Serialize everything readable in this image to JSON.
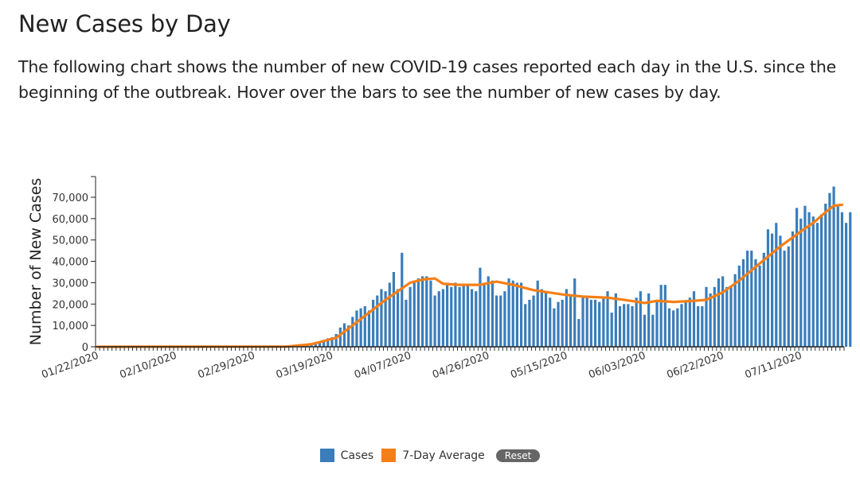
{
  "page": {
    "title": "New Cases by Day",
    "description": "The following chart shows the number of new COVID-19 cases reported each day in the U.S. since the beginning of the outbreak. Hover over the bars to see the number of new cases by day."
  },
  "legend": {
    "cases_label": "Cases",
    "avg_label": "7-Day Average",
    "reset_label": "Reset"
  },
  "colors": {
    "bar": "#3a7dba",
    "line": "#f57f17"
  },
  "chart_data": {
    "type": "bar",
    "ylabel": "Number of New Cases",
    "ylim": [
      0,
      80000
    ],
    "yticks": [
      0,
      10000,
      20000,
      30000,
      40000,
      50000,
      60000,
      70000
    ],
    "ytick_labels": [
      "0",
      "10,000",
      "20,000",
      "30,000",
      "40,000",
      "50,000",
      "60,000",
      "70,000"
    ],
    "x_start": "2020-01-22",
    "x_end": "2020-07-21",
    "xtick_labels": [
      "01/22/2020",
      "02/10/2020",
      "02/29/2020",
      "03/19/2020",
      "04/07/2020",
      "04/26/2020",
      "05/15/2020",
      "06/03/2020",
      "06/22/2020",
      "07/11/2020"
    ],
    "series": [
      {
        "name": "Cases",
        "type": "bar",
        "segments": [
          {
            "start": "2020-01-22",
            "values": [
              0,
              0,
              0,
              0,
              0,
              0,
              0,
              0,
              0,
              0,
              0,
              0,
              0,
              0,
              0,
              0,
              0,
              0,
              0,
              0,
              0,
              0,
              0,
              0,
              0,
              0,
              0,
              0,
              0,
              0,
              0,
              0,
              0,
              0,
              0,
              0,
              0,
              0,
              0,
              0,
              0,
              0,
              0,
              0,
              0,
              0
            ]
          },
          {
            "start": "2020-03-08",
            "values": [
              100,
              150,
              200,
              300,
              400,
              600,
              800,
              1200,
              1800,
              2800,
              4000,
              4500,
              6000,
              9000,
              11000,
              10000,
              14000,
              17000,
              18000,
              19000,
              17000,
              22000,
              24000,
              27000,
              26000,
              30000,
              35000,
              27000,
              44000,
              22000,
              28000,
              31000,
              32000,
              33000,
              33000,
              31000,
              24000,
              26000,
              27000,
              29000,
              28000,
              30000,
              28000,
              29000,
              29000,
              27000,
              26000,
              37000,
              30000,
              33000,
              31000,
              24000,
              24000,
              26000,
              32000,
              31000,
              30000,
              30000,
              20000,
              22000,
              24000,
              31000,
              27000,
              26000,
              23000,
              18000,
              21000,
              22000,
              27000,
              24000,
              32000,
              13000,
              24000,
              23000,
              22000,
              22000,
              21000,
              23000,
              26000,
              16000,
              25000,
              19000,
              20000,
              20000,
              19000,
              23000,
              26000,
              15000,
              25000,
              15000,
              21000,
              29000,
              29000,
              18000,
              17000,
              18000,
              20000,
              21000,
              23000,
              26000,
              19000,
              19000,
              28000,
              25000,
              28000,
              32000,
              33000,
              28000,
              28000,
              34000,
              38000,
              41000,
              45000,
              45000,
              41000,
              38000,
              44000,
              55000,
              53000,
              58000,
              52000,
              45000,
              47000,
              54000,
              65000,
              60000,
              66000,
              63000,
              61000,
              58000,
              62000,
              67000,
              72000,
              75000,
              66000,
              63000,
              58000,
              63000
            ]
          }
        ]
      },
      {
        "name": "7-Day Average",
        "type": "line",
        "points": [
          [
            "2020-01-22",
            0
          ],
          [
            "2020-03-08",
            100
          ],
          [
            "2020-03-14",
            1200
          ],
          [
            "2020-03-20",
            4200
          ],
          [
            "2020-03-26",
            13000
          ],
          [
            "2020-04-01",
            22000
          ],
          [
            "2020-04-07",
            30000
          ],
          [
            "2020-04-10",
            31500
          ],
          [
            "2020-04-13",
            32000
          ],
          [
            "2020-04-15",
            29500
          ],
          [
            "2020-04-19",
            29000
          ],
          [
            "2020-04-24",
            29000
          ],
          [
            "2020-04-28",
            30500
          ],
          [
            "2020-05-02",
            29000
          ],
          [
            "2020-05-07",
            26500
          ],
          [
            "2020-05-14",
            24500
          ],
          [
            "2020-05-19",
            23500
          ],
          [
            "2020-05-25",
            23000
          ],
          [
            "2020-05-29",
            22000
          ],
          [
            "2020-06-03",
            20500
          ],
          [
            "2020-06-06",
            21500
          ],
          [
            "2020-06-10",
            21000
          ],
          [
            "2020-06-15",
            21500
          ],
          [
            "2020-06-18",
            22000
          ],
          [
            "2020-06-22",
            25500
          ],
          [
            "2020-06-26",
            31000
          ],
          [
            "2020-07-01",
            39000
          ],
          [
            "2020-07-06",
            47000
          ],
          [
            "2020-07-11",
            54000
          ],
          [
            "2020-07-14",
            58000
          ],
          [
            "2020-07-17",
            63000
          ],
          [
            "2020-07-19",
            66000
          ],
          [
            "2020-07-21",
            66500
          ]
        ]
      }
    ]
  }
}
